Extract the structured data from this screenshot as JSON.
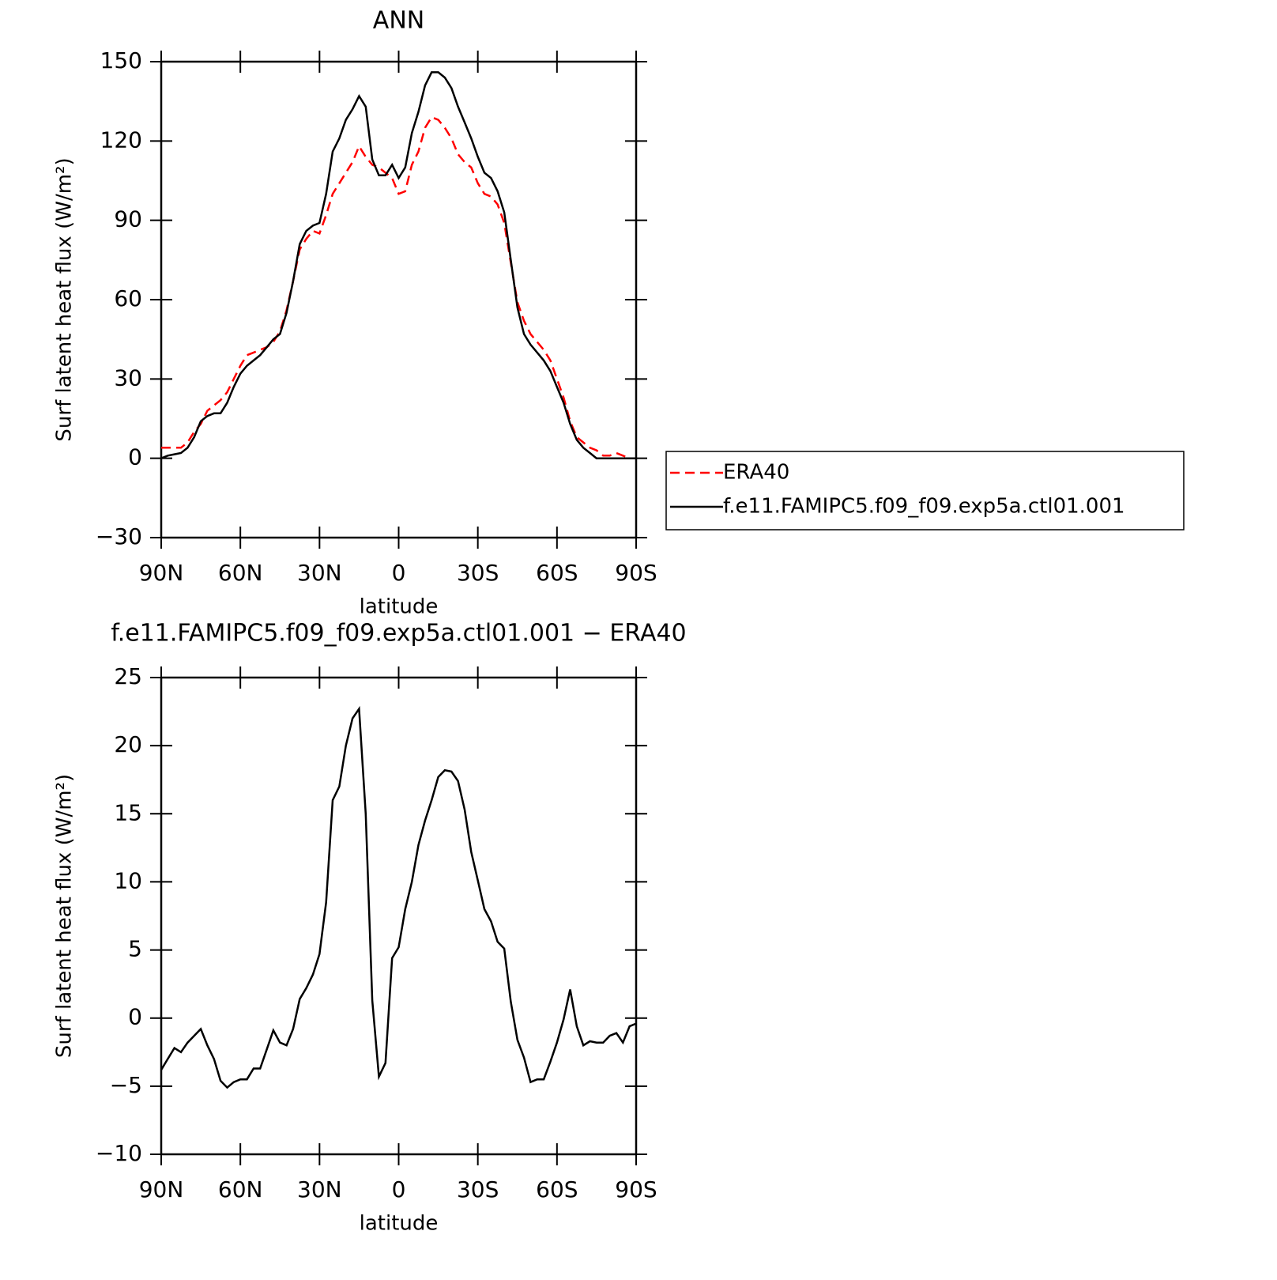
{
  "chart_data": [
    {
      "type": "line",
      "title": "ANN",
      "x_label": "latitude",
      "y_label": "Surf latent heat flux (W/m²)",
      "x": [
        90,
        87.5,
        85,
        82.5,
        80,
        77.5,
        75,
        72.5,
        70,
        67.5,
        65,
        62.5,
        60,
        57.5,
        55,
        52.5,
        50,
        47.5,
        45,
        42.5,
        40,
        37.5,
        35,
        32.5,
        30,
        27.5,
        25,
        22.5,
        20,
        17.5,
        15,
        12.5,
        10,
        7.5,
        5,
        2.5,
        0,
        -2.5,
        -5,
        -7.5,
        -10,
        -12.5,
        -15,
        -17.5,
        -20,
        -22.5,
        -25,
        -27.5,
        -30,
        -32.5,
        -35,
        -37.5,
        -40,
        -42.5,
        -45,
        -47.5,
        -50,
        -52.5,
        -55,
        -57.5,
        -60,
        -62.5,
        -65,
        -67.5,
        -70,
        -72.5,
        -75,
        -77.5,
        -80,
        -82.5,
        -85,
        -87.5,
        -90
      ],
      "series": [
        {
          "name": "ERA40",
          "color": "#ff0000",
          "line_style": "dashed",
          "values": [
            4,
            4,
            4,
            4,
            6,
            10,
            13,
            18,
            20,
            22,
            25,
            30,
            35,
            39,
            40,
            41,
            42,
            44,
            48,
            56,
            67,
            79,
            83,
            86,
            85,
            92,
            100,
            104,
            108,
            112,
            118,
            114,
            111,
            110,
            108,
            106,
            100,
            101,
            111,
            116,
            125,
            129,
            128,
            125,
            121,
            115,
            112,
            110,
            104,
            100,
            99,
            96,
            89,
            74,
            59,
            52,
            47,
            44,
            41,
            37,
            30,
            23,
            14,
            8,
            6,
            4,
            3,
            1,
            1,
            2,
            1,
            0,
            0
          ]
        },
        {
          "name": "f.e11.FAMIPC5.f09_f09.exp5a.ctl01.001",
          "color": "#000000",
          "line_style": "solid",
          "values": [
            0,
            1,
            1.5,
            2,
            4,
            8,
            14,
            16,
            17,
            17,
            21,
            27,
            32,
            35,
            37,
            39,
            42,
            45,
            47,
            55,
            67,
            81,
            86,
            88,
            89,
            100,
            116,
            121,
            128,
            132,
            137,
            133,
            113,
            107,
            107,
            111,
            106,
            110,
            123,
            131,
            141,
            146,
            146,
            144,
            140,
            133,
            127,
            121,
            114,
            108,
            106,
            101,
            93,
            75,
            57,
            47,
            43,
            40,
            37,
            33,
            27,
            21,
            13,
            7,
            4,
            2,
            0,
            0,
            0,
            0,
            0,
            0,
            0
          ]
        }
      ],
      "xlim": [
        90,
        -90
      ],
      "xticks": [
        {
          "value": 90,
          "label": "90N"
        },
        {
          "value": 60,
          "label": "60N"
        },
        {
          "value": 30,
          "label": "30N"
        },
        0,
        {
          "value": -30,
          "label": "30S"
        },
        {
          "value": -60,
          "label": "60S"
        },
        {
          "value": -90,
          "label": "90S"
        }
      ],
      "ylim": [
        -30,
        150
      ],
      "yticks": [
        {
          "value": -30,
          "label": "−30"
        },
        0,
        30,
        60,
        90,
        120,
        150
      ],
      "legend": "right"
    },
    {
      "type": "line",
      "title": "f.e11.FAMIPC5.f09_f09.exp5a.ctl01.001 − ERA40",
      "x_label": "latitude",
      "y_label": "Surf latent heat flux (W/m²)",
      "x": [
        90,
        87.5,
        85,
        82.5,
        80,
        77.5,
        75,
        72.5,
        70,
        67.5,
        65,
        62.5,
        60,
        57.5,
        55,
        52.5,
        50,
        47.5,
        45,
        42.5,
        40,
        37.5,
        35,
        32.5,
        30,
        27.5,
        25,
        22.5,
        20,
        17.5,
        15,
        12.5,
        10,
        7.5,
        5,
        2.5,
        0,
        -2.5,
        -5,
        -7.5,
        -10,
        -12.5,
        -15,
        -17.5,
        -20,
        -22.5,
        -25,
        -27.5,
        -30,
        -32.5,
        -35,
        -37.5,
        -40,
        -42.5,
        -45,
        -47.5,
        -50,
        -52.5,
        -55,
        -57.5,
        -60,
        -62.5,
        -65,
        -67.5,
        -70,
        -72.5,
        -75,
        -77.5,
        -80,
        -82.5,
        -85,
        -87.5,
        -90
      ],
      "color": "#000000",
      "line_style": "solid",
      "values": [
        -3.8,
        -3,
        -2.2,
        -2.5,
        -1.8,
        -1.3,
        -0.8,
        -2,
        -3,
        -4.6,
        -5.1,
        -4.7,
        -4.5,
        -4.5,
        -3.7,
        -3.7,
        -2.3,
        -0.9,
        -1.8,
        -2,
        -0.8,
        1.4,
        2.2,
        3.2,
        4.7,
        8.5,
        16,
        17,
        20,
        22,
        22.7,
        15,
        1.3,
        -4.3,
        -3.3,
        4.4,
        5.2,
        8,
        10,
        12.7,
        14.5,
        16,
        17.7,
        18.2,
        18.1,
        17.4,
        15.3,
        12.2,
        10.1,
        8,
        7.1,
        5.6,
        5.1,
        1.2,
        -1.6,
        -2.9,
        -4.7,
        -4.5,
        -4.5,
        -3.2,
        -1.8,
        -0.1,
        2.1,
        -0.6,
        -2,
        -1.7,
        -1.8,
        -1.8,
        -1.3,
        -1.1,
        -1.8,
        -0.6,
        -0.4
      ],
      "xlim": [
        90,
        -90
      ],
      "xticks": [
        {
          "value": 90,
          "label": "90N"
        },
        {
          "value": 60,
          "label": "60N"
        },
        {
          "value": 30,
          "label": "30N"
        },
        0,
        {
          "value": -30,
          "label": "30S"
        },
        {
          "value": -60,
          "label": "60S"
        },
        {
          "value": -90,
          "label": "90S"
        }
      ],
      "ylim": [
        -10,
        25
      ],
      "yticks": [
        {
          "value": -10,
          "label": "−10"
        },
        {
          "value": -5,
          "label": "−5"
        },
        0,
        5,
        10,
        15,
        20,
        25
      ]
    }
  ]
}
